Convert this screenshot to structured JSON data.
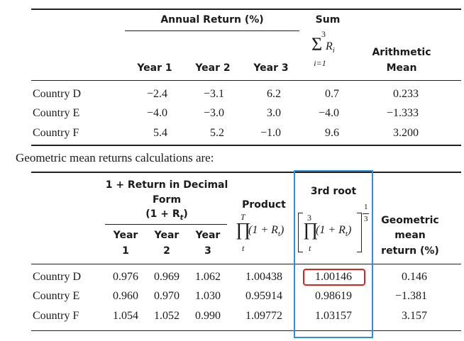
{
  "table1": {
    "group_header": "Annual Return (%)",
    "sum_label": "Sum",
    "sum_upper": "3",
    "sum_lower": "i=1",
    "sum_var": "R",
    "sum_sub": "i",
    "arith_line1": "Arithmetic",
    "arith_line2": "Mean",
    "col_year1": "Year 1",
    "col_year2": "Year 2",
    "col_year3": "Year 3",
    "rows": [
      {
        "country": "Country D",
        "y1": "−2.4",
        "y2": "−3.1",
        "y3": "6.2",
        "sum": "0.7",
        "mean": "0.233"
      },
      {
        "country": "Country E",
        "y1": "−4.0",
        "y2": "−3.0",
        "y3": "3.0",
        "sum": "−4.0",
        "mean": "−1.333"
      },
      {
        "country": "Country F",
        "y1": "5.4",
        "y2": "5.2",
        "y3": "−1.0",
        "sum": "9.6",
        "mean": "3.200"
      }
    ]
  },
  "caption": "Geometric mean returns calculations are:",
  "table2": {
    "group_line1": "1 + Return in Decimal",
    "group_line2": "Form",
    "group_line3": "(1 + R",
    "group_line3_sub": "t",
    "group_line3_end": ")",
    "col_year": "Year",
    "col_num1": "1",
    "col_num2": "2",
    "col_num3": "3",
    "product_label": "Product",
    "product_upper": "T",
    "product_lower": "t",
    "product_expr": "(1 + R",
    "product_sub": "t",
    "product_close": ")",
    "root_label": "3rd root",
    "root_upper": "3",
    "root_lower": "t",
    "root_exp_num": "1",
    "root_exp_den": "3",
    "geo_line1": "Geometric",
    "geo_line2": "mean",
    "geo_line3": "return (%)",
    "rows": [
      {
        "country": "Country D",
        "y1": "0.976",
        "y2": "0.969",
        "y3": "1.062",
        "product": "1.00438",
        "root": "1.00146",
        "geo": "0.146"
      },
      {
        "country": "Country E",
        "y1": "0.960",
        "y2": "0.970",
        "y3": "1.030",
        "product": "0.95914",
        "root": "0.98619",
        "geo": "−1.381"
      },
      {
        "country": "Country F",
        "y1": "1.054",
        "y2": "1.052",
        "y3": "0.990",
        "product": "1.09772",
        "root": "1.03157",
        "geo": "3.157"
      }
    ]
  },
  "colors": {
    "highlight_red": "#e02020",
    "highlight_blue": "#2d8fe0"
  }
}
